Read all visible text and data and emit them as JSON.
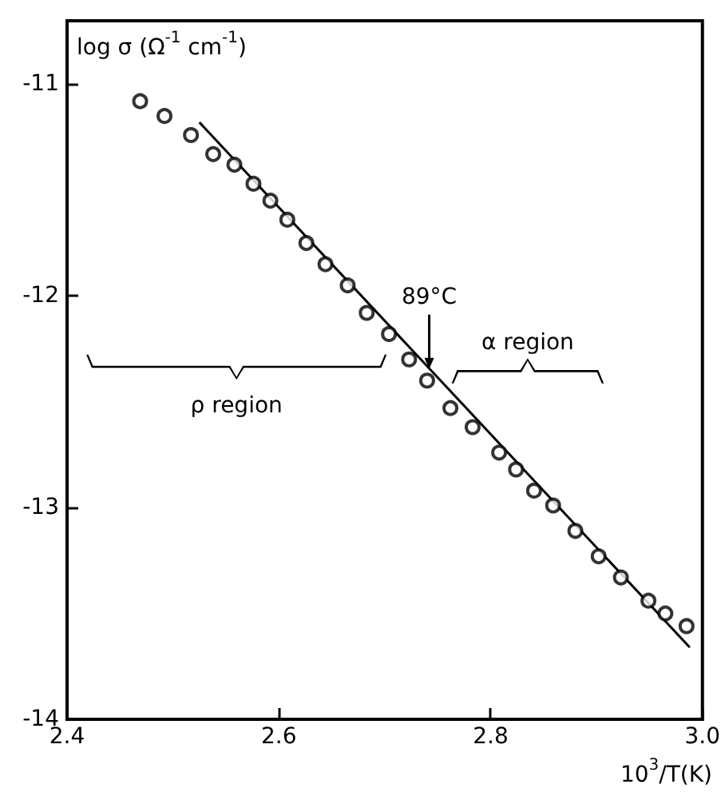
{
  "chart_data": {
    "type": "scatter",
    "xlabel": "10$^{3}$/T(K)",
    "ylabel": "log σ (Ω$^{-1}$ cm$^{-1}$)",
    "xlim": [
      2.4,
      3.0
    ],
    "xticks": [
      2.4,
      2.6,
      2.8,
      {
        "value": 3.0,
        "label": "3.0"
      }
    ],
    "ylim": [
      -14,
      -10.7
    ],
    "yticks": [
      -14,
      -13,
      -12,
      -11
    ],
    "grid": false,
    "series": [
      {
        "marker": "circle",
        "color": "#000000",
        "x": [
          2.469,
          2.492,
          2.517,
          2.538,
          2.558,
          2.576,
          2.592,
          2.608,
          2.626,
          2.644,
          2.665,
          2.683,
          2.704,
          2.723,
          2.74,
          2.762,
          2.783,
          2.808,
          2.824,
          2.841,
          2.859,
          2.88,
          2.902,
          2.923,
          2.949,
          2.965,
          2.985
        ],
        "values": [
          -11.08,
          -11.15,
          -11.24,
          -11.33,
          -11.38,
          -11.47,
          -11.55,
          -11.64,
          -11.75,
          -11.85,
          -11.95,
          -12.08,
          -12.18,
          -12.3,
          -12.4,
          -12.53,
          -12.62,
          -12.74,
          -12.82,
          -12.92,
          -12.99,
          -13.11,
          -13.23,
          -13.33,
          -13.44,
          -13.5,
          -13.56
        ]
      },
      {
        "type": "line",
        "marker": "none",
        "line_style": "solid",
        "color": "#000000",
        "x": [
          2.525,
          2.988
        ],
        "values": [
          -11.18,
          -13.66
        ]
      }
    ],
    "annotations": [
      {
        "text": "89°C",
        "x": 2.742,
        "y": -12.36
      },
      "ρ region",
      "α region"
    ]
  }
}
